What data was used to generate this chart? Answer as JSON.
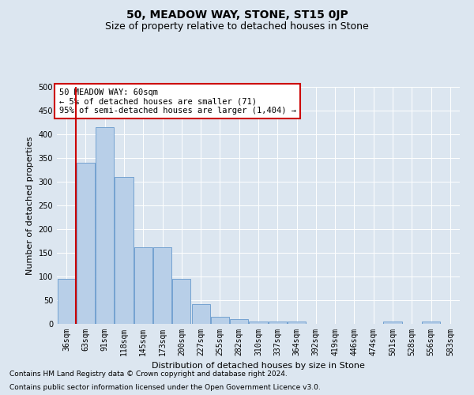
{
  "title": "50, MEADOW WAY, STONE, ST15 0JP",
  "subtitle": "Size of property relative to detached houses in Stone",
  "xlabel": "Distribution of detached houses by size in Stone",
  "ylabel": "Number of detached properties",
  "categories": [
    "36sqm",
    "63sqm",
    "91sqm",
    "118sqm",
    "145sqm",
    "173sqm",
    "200sqm",
    "227sqm",
    "255sqm",
    "282sqm",
    "310sqm",
    "337sqm",
    "364sqm",
    "392sqm",
    "419sqm",
    "446sqm",
    "474sqm",
    "501sqm",
    "528sqm",
    "556sqm",
    "583sqm"
  ],
  "values": [
    95,
    340,
    415,
    310,
    162,
    162,
    95,
    42,
    15,
    10,
    5,
    5,
    5,
    0,
    0,
    0,
    0,
    5,
    0,
    5,
    0
  ],
  "bar_color": "#b8cfe8",
  "bar_edge_color": "#6699cc",
  "background_color": "#dce6f0",
  "plot_bg_color": "#dce6f0",
  "grid_color": "#ffffff",
  "vline_color": "#cc0000",
  "annotation_text": "50 MEADOW WAY: 60sqm\n← 5% of detached houses are smaller (71)\n95% of semi-detached houses are larger (1,404) →",
  "annotation_box_color": "#ffffff",
  "annotation_box_edge": "#cc0000",
  "footnote1": "Contains HM Land Registry data © Crown copyright and database right 2024.",
  "footnote2": "Contains public sector information licensed under the Open Government Licence v3.0.",
  "ylim": [
    0,
    500
  ],
  "yticks": [
    0,
    50,
    100,
    150,
    200,
    250,
    300,
    350,
    400,
    450,
    500
  ],
  "title_fontsize": 10,
  "subtitle_fontsize": 9,
  "axis_label_fontsize": 8,
  "tick_fontsize": 7,
  "annotation_fontsize": 7.5,
  "footnote_fontsize": 6.5
}
